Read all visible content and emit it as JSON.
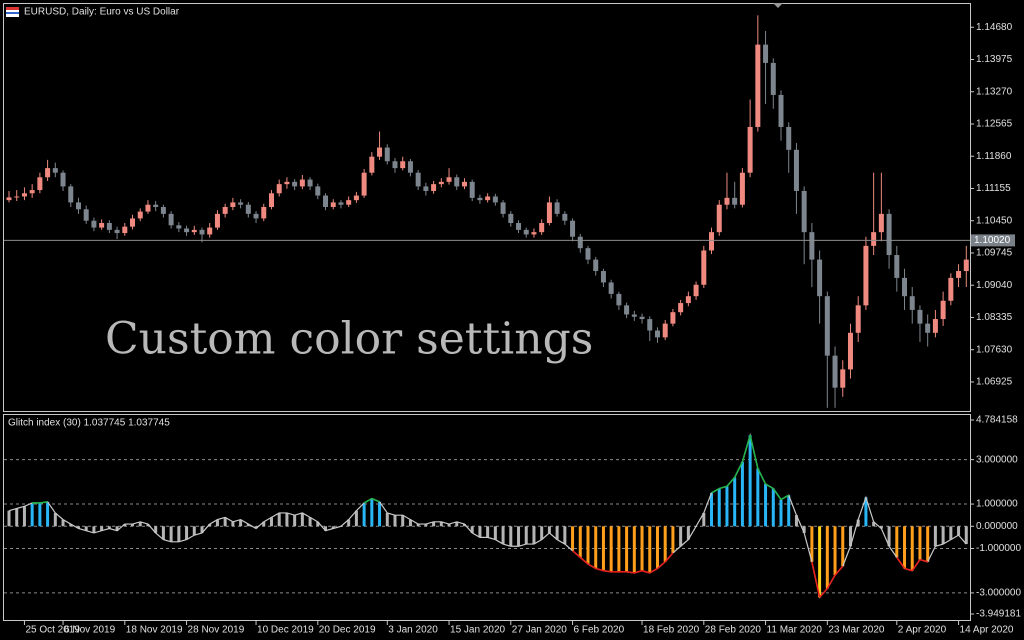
{
  "chart_data": [
    {
      "type": "candlestick",
      "title": "EURUSD, Daily:  Euro vs US Dollar",
      "annotation": "Custom color settings",
      "colors": {
        "up": "#f08a80",
        "down": "#7d858e"
      },
      "ylim": [
        1.0629,
        1.1521
      ],
      "yticks": [
        {
          "value": 1.1468,
          "label": "1.14680"
        },
        1.13975,
        {
          "value": 1.1327,
          "label": "1.13270"
        },
        1.12565,
        {
          "value": 1.1186,
          "label": "1.11860"
        },
        1.11155,
        {
          "value": 1.1045,
          "label": "1.10450"
        },
        1.09745,
        {
          "value": 1.0904,
          "label": "1.09040"
        },
        1.08335,
        {
          "value": 1.0763,
          "label": "1.07630"
        },
        1.06925
      ],
      "price_line": {
        "value": 1.1002,
        "label": "1.10020"
      },
      "categories": [
        null,
        null,
        "25 Oct 2019",
        null,
        null,
        null,
        null,
        "6 Nov 2019",
        null,
        null,
        null,
        null,
        null,
        null,
        null,
        "18 Nov 2019",
        null,
        null,
        null,
        null,
        null,
        null,
        null,
        "28 Nov 2019",
        null,
        null,
        null,
        null,
        null,
        null,
        null,
        null,
        "10 Dec 2019",
        null,
        null,
        null,
        null,
        null,
        null,
        null,
        "20 Dec 2019",
        null,
        null,
        null,
        null,
        null,
        null,
        null,
        null,
        "3 Jan 2020",
        null,
        null,
        null,
        null,
        null,
        null,
        null,
        "15 Jan 2020",
        null,
        null,
        null,
        null,
        null,
        null,
        null,
        "27 Jan 2020",
        null,
        null,
        null,
        null,
        null,
        null,
        null,
        "6 Feb 2020",
        null,
        null,
        null,
        null,
        null,
        null,
        null,
        null,
        "18 Feb 2020",
        null,
        null,
        null,
        null,
        null,
        null,
        null,
        "28 Feb 2020",
        null,
        null,
        null,
        null,
        null,
        null,
        null,
        "11 Mar 2020",
        null,
        null,
        null,
        null,
        null,
        null,
        null,
        "23 Mar 2020",
        null,
        null,
        null,
        null,
        null,
        null,
        null,
        null,
        "2 Apr 2020",
        null,
        null,
        null,
        null,
        null,
        null,
        null,
        "14 Apr 2020",
        null
      ],
      "ohlc": [
        [
          1.109,
          1.111,
          1.1085,
          1.1096
        ],
        [
          1.1096,
          1.1112,
          1.1088,
          1.1098
        ],
        [
          1.1098,
          1.1118,
          1.109,
          1.1105
        ],
        [
          1.1105,
          1.1125,
          1.1095,
          1.1112
        ],
        [
          1.1112,
          1.115,
          1.1105,
          1.114
        ],
        [
          1.114,
          1.1178,
          1.1132,
          1.116
        ],
        [
          1.116,
          1.1172,
          1.114,
          1.115
        ],
        [
          1.115,
          1.1155,
          1.111,
          1.112
        ],
        [
          1.112,
          1.1125,
          1.1075,
          1.1085
        ],
        [
          1.1085,
          1.1095,
          1.106,
          1.107
        ],
        [
          1.107,
          1.1078,
          1.1038,
          1.1045
        ],
        [
          1.1045,
          1.1052,
          1.1022,
          1.103
        ],
        [
          1.103,
          1.1048,
          1.1025,
          1.104
        ],
        [
          1.104,
          1.1046,
          1.1018,
          1.1025
        ],
        [
          1.1025,
          1.1032,
          1.1005,
          1.1018
        ],
        [
          1.1018,
          1.104,
          1.1012,
          1.1032
        ],
        [
          1.1032,
          1.1058,
          1.1026,
          1.105
        ],
        [
          1.105,
          1.1072,
          1.1044,
          1.1065
        ],
        [
          1.1065,
          1.109,
          1.106,
          1.108
        ],
        [
          1.108,
          1.1088,
          1.1066,
          1.1075
        ],
        [
          1.1075,
          1.108,
          1.1052,
          1.106
        ],
        [
          1.106,
          1.1066,
          1.1028,
          1.1035
        ],
        [
          1.1035,
          1.1042,
          1.102,
          1.1028
        ],
        [
          1.1028,
          1.1034,
          1.1012,
          1.102
        ],
        [
          1.102,
          1.1034,
          1.1014,
          1.1025
        ],
        [
          1.1025,
          1.103,
          1.0998,
          1.1015
        ],
        [
          1.1015,
          1.104,
          1.1008,
          1.103
        ],
        [
          1.103,
          1.1068,
          1.1025,
          1.106
        ],
        [
          1.106,
          1.1082,
          1.1052,
          1.1075
        ],
        [
          1.1075,
          1.1095,
          1.1068,
          1.1085
        ],
        [
          1.1085,
          1.1092,
          1.1072,
          1.108
        ],
        [
          1.108,
          1.1086,
          1.1052,
          1.106
        ],
        [
          1.106,
          1.1066,
          1.104,
          1.105
        ],
        [
          1.105,
          1.1082,
          1.1044,
          1.1075
        ],
        [
          1.1075,
          1.1112,
          1.107,
          1.1105
        ],
        [
          1.1105,
          1.1135,
          1.1098,
          1.1125
        ],
        [
          1.1125,
          1.114,
          1.1115,
          1.113
        ],
        [
          1.113,
          1.1136,
          1.1112,
          1.112
        ],
        [
          1.112,
          1.1145,
          1.1114,
          1.1135
        ],
        [
          1.1135,
          1.114,
          1.1112,
          1.112
        ],
        [
          1.112,
          1.1126,
          1.1092,
          1.11
        ],
        [
          1.11,
          1.1105,
          1.1068,
          1.1075
        ],
        [
          1.1075,
          1.1092,
          1.107,
          1.1085
        ],
        [
          1.1085,
          1.109,
          1.1072,
          1.108
        ],
        [
          1.108,
          1.1098,
          1.1075,
          1.109
        ],
        [
          1.109,
          1.1108,
          1.1084,
          1.11
        ],
        [
          1.11,
          1.1158,
          1.1095,
          1.115
        ],
        [
          1.115,
          1.1195,
          1.1144,
          1.1185
        ],
        [
          1.1185,
          1.124,
          1.1178,
          1.1205
        ],
        [
          1.1205,
          1.1212,
          1.1168,
          1.1175
        ],
        [
          1.1175,
          1.1182,
          1.115,
          1.116
        ],
        [
          1.116,
          1.1185,
          1.1155,
          1.1175
        ],
        [
          1.1175,
          1.118,
          1.1142,
          1.115
        ],
        [
          1.115,
          1.1156,
          1.1112,
          1.112
        ],
        [
          1.112,
          1.1128,
          1.11,
          1.111
        ],
        [
          1.111,
          1.1132,
          1.1104,
          1.1125
        ],
        [
          1.1125,
          1.1138,
          1.1118,
          1.113
        ],
        [
          1.113,
          1.116,
          1.1124,
          1.114
        ],
        [
          1.114,
          1.1146,
          1.1112,
          1.112
        ],
        [
          1.112,
          1.1138,
          1.1114,
          1.113
        ],
        [
          1.113,
          1.1135,
          1.1088,
          1.1095
        ],
        [
          1.1095,
          1.1102,
          1.1082,
          1.109
        ],
        [
          1.109,
          1.1105,
          1.1085,
          1.1098
        ],
        [
          1.1098,
          1.1104,
          1.1078,
          1.1085
        ],
        [
          1.1085,
          1.109,
          1.1052,
          1.106
        ],
        [
          1.106,
          1.1066,
          1.1032,
          1.104
        ],
        [
          1.104,
          1.1046,
          1.1018,
          1.1025
        ],
        [
          1.1025,
          1.103,
          1.1008,
          1.1015
        ],
        [
          1.1015,
          1.1028,
          1.1008,
          1.102
        ],
        [
          1.102,
          1.1048,
          1.1014,
          1.104
        ],
        [
          1.104,
          1.1098,
          1.1035,
          1.1085
        ],
        [
          1.1085,
          1.1092,
          1.1054,
          1.106
        ],
        [
          1.106,
          1.1066,
          1.1036,
          1.1045
        ],
        [
          1.1045,
          1.105,
          1.1,
          1.101
        ],
        [
          1.101,
          1.1016,
          1.0975,
          1.0985
        ],
        [
          1.0985,
          1.099,
          1.095,
          1.096
        ],
        [
          1.096,
          1.0966,
          1.0925,
          1.0935
        ],
        [
          1.0935,
          1.094,
          1.09,
          1.091
        ],
        [
          1.091,
          1.0916,
          1.0875,
          1.0885
        ],
        [
          1.0885,
          1.089,
          1.085,
          1.086
        ],
        [
          1.086,
          1.0866,
          1.0832,
          1.084
        ],
        [
          1.084,
          1.0848,
          1.0826,
          1.0835
        ],
        [
          1.0835,
          1.0842,
          1.082,
          1.083
        ],
        [
          1.083,
          1.0836,
          1.0782,
          1.0805
        ],
        [
          1.0805,
          1.0812,
          1.0778,
          1.079
        ],
        [
          1.079,
          1.0828,
          1.0784,
          1.082
        ],
        [
          1.082,
          1.0852,
          1.0814,
          1.0845
        ],
        [
          1.0845,
          1.0872,
          1.0838,
          1.0865
        ],
        [
          1.0865,
          1.089,
          1.0858,
          1.088
        ],
        [
          1.088,
          1.0912,
          1.0872,
          1.0905
        ],
        [
          1.0905,
          1.099,
          1.0898,
          1.098
        ],
        [
          1.098,
          1.103,
          1.0972,
          1.102
        ],
        [
          1.102,
          1.109,
          1.1012,
          1.108
        ],
        [
          1.108,
          1.115,
          1.107,
          1.1095
        ],
        [
          1.1095,
          1.113,
          1.1072,
          1.108
        ],
        [
          1.108,
          1.116,
          1.1074,
          1.115
        ],
        [
          1.115,
          1.131,
          1.114,
          1.125
        ],
        [
          1.125,
          1.1494,
          1.124,
          1.143
        ],
        [
          1.143,
          1.146,
          1.13,
          1.139
        ],
        [
          1.139,
          1.14,
          1.129,
          1.132
        ],
        [
          1.132,
          1.133,
          1.122,
          1.125
        ],
        [
          1.125,
          1.126,
          1.115,
          1.12
        ],
        [
          1.12,
          1.1215,
          1.106,
          1.111
        ],
        [
          1.111,
          1.112,
          1.095,
          1.102
        ],
        [
          1.102,
          1.104,
          1.09,
          1.096
        ],
        [
          1.096,
          1.098,
          1.082,
          1.088
        ],
        [
          1.088,
          1.089,
          1.0636,
          1.075
        ],
        [
          1.075,
          1.077,
          1.0636,
          1.068
        ],
        [
          1.068,
          1.074,
          1.066,
          1.072
        ],
        [
          1.072,
          1.082,
          1.07,
          1.08
        ],
        [
          1.08,
          1.088,
          1.078,
          1.086
        ],
        [
          1.086,
          1.101,
          1.085,
          1.099
        ],
        [
          1.099,
          1.115,
          1.097,
          1.102
        ],
        [
          1.102,
          1.115,
          1.1,
          1.106
        ],
        [
          1.106,
          1.107,
          1.094,
          1.097
        ],
        [
          1.097,
          1.099,
          1.089,
          1.092
        ],
        [
          1.092,
          1.094,
          1.085,
          1.088
        ],
        [
          1.088,
          1.09,
          1.082,
          1.085
        ],
        [
          1.085,
          1.086,
          1.078,
          1.082
        ],
        [
          1.082,
          1.084,
          1.077,
          1.08
        ],
        [
          1.08,
          1.085,
          1.079,
          1.083
        ],
        [
          1.083,
          1.089,
          1.0815,
          1.087
        ],
        [
          1.087,
          1.093,
          1.086,
          1.092
        ],
        [
          1.092,
          1.095,
          1.09,
          1.0935
        ],
        [
          1.0935,
          1.099,
          1.09,
          1.096
        ]
      ]
    },
    {
      "type": "bar",
      "title": "Glitch index (30) 1.037745 1.037745",
      "colors": {
        "above": "#29b6f6",
        "neutral": "#b4b4b4",
        "below": "#ff9f1c",
        "extreme": "#ffd31c",
        "line": "#c8c8c8",
        "line_above": "#22b14c",
        "line_below": "#e8201c"
      },
      "ylim": [
        -3.949181,
        4.784158
      ],
      "yticks": [
        4.784158,
        {
          "value": 3,
          "label": "3.000000"
        },
        {
          "value": 1,
          "label": "1.000000"
        },
        {
          "value": 0,
          "label": "0.000000"
        },
        {
          "value": -1,
          "label": "-1.000000"
        },
        {
          "value": -3,
          "label": "-3.000000"
        },
        -3.949181
      ],
      "values": [
        0.7,
        0.8,
        0.9,
        1.05,
        1.05,
        1.1,
        0.6,
        0.3,
        0.1,
        -0.1,
        -0.2,
        -0.3,
        -0.2,
        -0.1,
        -0.2,
        0.1,
        0.1,
        0.2,
        0.1,
        -0.3,
        -0.6,
        -0.7,
        -0.7,
        -0.6,
        -0.4,
        -0.3,
        0.1,
        0.3,
        0.4,
        0.2,
        0.3,
        0.1,
        -0.1,
        0.2,
        0.4,
        0.6,
        0.6,
        0.5,
        0.6,
        0.4,
        0.2,
        -0.2,
        -0.1,
        0.0,
        0.3,
        0.7,
        1.05,
        1.25,
        1.1,
        0.6,
        0.5,
        0.5,
        0.3,
        0.1,
        0.1,
        0.2,
        0.2,
        0.1,
        0.2,
        0.1,
        -0.3,
        -0.5,
        -0.5,
        -0.6,
        -0.8,
        -0.9,
        -0.9,
        -0.8,
        -0.8,
        -0.6,
        -0.3,
        -0.6,
        -0.8,
        -1.1,
        -1.4,
        -1.7,
        -1.9,
        -2.0,
        -2.05,
        -2.05,
        -2.05,
        -2.1,
        -2.0,
        -2.1,
        -1.9,
        -1.6,
        -1.2,
        -0.9,
        -0.6,
        0.0,
        0.6,
        1.5,
        1.7,
        1.8,
        2.2,
        2.9,
        4.1,
        2.6,
        1.9,
        1.7,
        1.2,
        1.4,
        0.5,
        -0.3,
        -1.6,
        -3.2,
        -2.8,
        -2.2,
        -1.8,
        -0.9,
        0.3,
        1.3,
        0.2,
        -0.1,
        -0.9,
        -1.4,
        -1.9,
        -2.0,
        -1.5,
        -1.6,
        -0.9,
        -0.8,
        -0.6,
        -0.4,
        -0.8
      ]
    }
  ]
}
